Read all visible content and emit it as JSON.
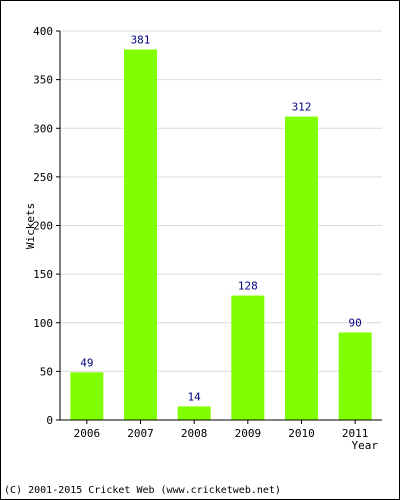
{
  "chart_data": {
    "type": "bar",
    "categories": [
      "2006",
      "2007",
      "2008",
      "2009",
      "2010",
      "2011"
    ],
    "values": [
      49,
      381,
      14,
      128,
      312,
      90
    ],
    "data_labels": [
      "49",
      "381",
      "14",
      "128",
      "312",
      "90"
    ],
    "title": "",
    "xlabel": "Year",
    "ylabel": "Wickets",
    "ylim": [
      0,
      400
    ],
    "yticks": [
      0,
      50,
      100,
      150,
      200,
      250,
      300,
      350,
      400
    ],
    "grid": true,
    "legend": "none",
    "colors": {
      "bar": "#80ff00",
      "grid": "#dcdcdc",
      "label": "#000080",
      "axis": "#000000"
    }
  },
  "footer": {
    "copyright": "(C) 2001-2015 Cricket Web (www.cricketweb.net)"
  }
}
